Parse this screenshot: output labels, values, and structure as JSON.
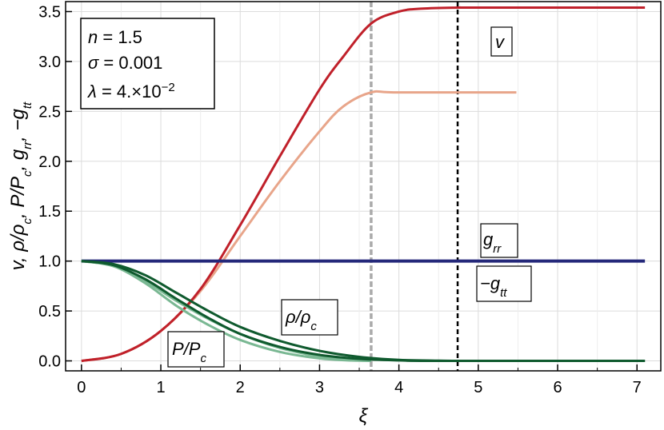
{
  "chart_data": {
    "type": "line",
    "xlabel": "ξ",
    "ylabel_parts": [
      {
        "text": "v",
        "sub": ""
      },
      {
        "text": ",  ρ/ρ",
        "sub": "c"
      },
      {
        "text": ",  P/P",
        "sub": "c"
      },
      {
        "text": ",  g",
        "sub": "rr"
      },
      {
        "text": ",  −g",
        "sub": "tt"
      }
    ],
    "xlim": [
      -0.2,
      7.3
    ],
    "ylim": [
      -0.1,
      3.6
    ],
    "x_ticks": [
      "0",
      "1",
      "2",
      "3",
      "4",
      "5",
      "6",
      "7"
    ],
    "y_ticks": [
      "0.0",
      "0.5",
      "1.0",
      "1.5",
      "2.0",
      "2.5",
      "3.0",
      "3.5"
    ],
    "grid": true,
    "parameters": [
      {
        "symbol": "n",
        "rhs": " = 1.5"
      },
      {
        "symbol": "σ",
        "rhs": " = 0.001"
      },
      {
        "symbol": "λ",
        "rhs": " = 4.×10",
        "sup": "−2"
      }
    ],
    "labels": {
      "v": {
        "text": "v",
        "sub": ""
      },
      "grr": {
        "text": "g",
        "sub": "rr"
      },
      "gtt": {
        "text": "−g",
        "sub": "tt"
      },
      "rho": {
        "text": "ρ/ρ",
        "sub": "c"
      },
      "p": {
        "text": "P/P",
        "sub": "c"
      }
    },
    "vlines": [
      {
        "x": 3.65,
        "style": "dashed",
        "color": "#aaaaaa"
      },
      {
        "x": 4.74,
        "style": "dashed",
        "color": "#000000"
      }
    ],
    "series": [
      {
        "color": "#e8a58a",
        "points": [
          [
            0,
            0
          ],
          [
            0.5,
            0.07
          ],
          [
            1,
            0.3
          ],
          [
            1.5,
            0.7
          ],
          [
            2,
            1.25
          ],
          [
            2.5,
            1.8
          ],
          [
            3,
            2.3
          ],
          [
            3.3,
            2.55
          ],
          [
            3.65,
            2.69
          ],
          [
            4,
            2.69
          ],
          [
            5.48,
            2.69
          ]
        ]
      },
      {
        "color": "#c0202a",
        "points": [
          [
            0,
            0
          ],
          [
            0.5,
            0.07
          ],
          [
            1,
            0.3
          ],
          [
            1.5,
            0.72
          ],
          [
            2,
            1.36
          ],
          [
            2.5,
            2.05
          ],
          [
            3,
            2.72
          ],
          [
            3.3,
            3.05
          ],
          [
            3.65,
            3.38
          ],
          [
            4,
            3.5
          ],
          [
            4.3,
            3.53
          ],
          [
            4.74,
            3.54
          ],
          [
            5,
            3.54
          ],
          [
            7.1,
            3.54
          ]
        ]
      },
      {
        "color": "#24287a",
        "points": [
          [
            0,
            1.0
          ],
          [
            2,
            1.0
          ],
          [
            4,
            1.0
          ],
          [
            7.1,
            1.0
          ]
        ]
      },
      {
        "color": "#7ab893",
        "points": [
          [
            0,
            1.0
          ],
          [
            0.4,
            0.95
          ],
          [
            0.8,
            0.8
          ],
          [
            1.2,
            0.6
          ],
          [
            1.6,
            0.42
          ],
          [
            2,
            0.27
          ],
          [
            2.5,
            0.13
          ],
          [
            3,
            0.045
          ],
          [
            3.4,
            0.01
          ],
          [
            3.65,
            0
          ]
        ]
      },
      {
        "color": "#7ab893",
        "points": [
          [
            0,
            1.0
          ],
          [
            0.4,
            0.95
          ],
          [
            0.8,
            0.78
          ],
          [
            1.2,
            0.55
          ],
          [
            1.6,
            0.36
          ],
          [
            2,
            0.21
          ],
          [
            2.5,
            0.09
          ],
          [
            3,
            0.025
          ],
          [
            3.4,
            0.004
          ],
          [
            3.65,
            0
          ]
        ]
      },
      {
        "color": "#0f5a2e",
        "points": [
          [
            0,
            1.0
          ],
          [
            0.4,
            0.97
          ],
          [
            0.8,
            0.86
          ],
          [
            1.2,
            0.68
          ],
          [
            1.6,
            0.5
          ],
          [
            2,
            0.34
          ],
          [
            2.5,
            0.2
          ],
          [
            3,
            0.1
          ],
          [
            3.5,
            0.04
          ],
          [
            4,
            0.01
          ],
          [
            4.5,
            0.002
          ],
          [
            5,
            0
          ],
          [
            7.1,
            0
          ]
        ]
      },
      {
        "color": "#0f5a2e",
        "points": [
          [
            0,
            1.0
          ],
          [
            0.4,
            0.96
          ],
          [
            0.8,
            0.82
          ],
          [
            1.2,
            0.62
          ],
          [
            1.6,
            0.43
          ],
          [
            2,
            0.27
          ],
          [
            2.5,
            0.14
          ],
          [
            3,
            0.06
          ],
          [
            3.5,
            0.02
          ],
          [
            4,
            0.005
          ],
          [
            4.5,
            0
          ],
          [
            7.1,
            0
          ]
        ]
      }
    ]
  }
}
